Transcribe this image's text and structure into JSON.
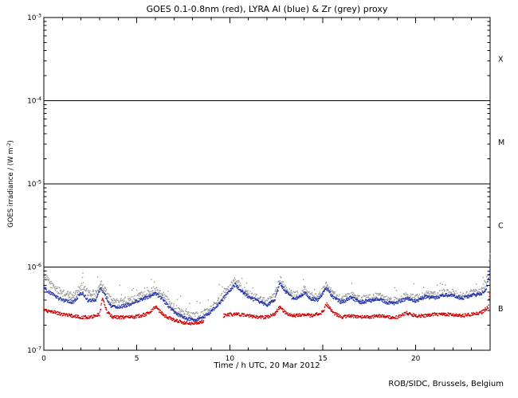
{
  "title": "GOES 0.1-0.8nm (red), LYRA Al (blue) & Zr (grey) proxy",
  "xlabel": "Time / h UTC, 20 Mar 2012",
  "ylabel": {
    "text": "GOES irradiance / (W m",
    "sup": "-2",
    "close": ")"
  },
  "credit": "ROB/SIDC, Brussels, Belgium",
  "chart_data": {
    "type": "scatter",
    "title": "GOES 0.1-0.8nm (red), LYRA Al (blue) & Zr (grey) proxy",
    "xlabel": "Time / h UTC, 20 Mar 2012",
    "ylabel": "GOES irradiance / (W m-2)",
    "x_unit": "hours UTC",
    "y_unit": "W m-2",
    "xlim": [
      0,
      24
    ],
    "ylim_exp": [
      -7,
      -3
    ],
    "x_major_ticks": [
      0,
      5,
      10,
      15,
      20
    ],
    "x_minor_step": 1,
    "y_decade_exps": [
      -3,
      -4,
      -5,
      -6,
      -7
    ],
    "hlines_exp": [
      -4,
      -5,
      -6
    ],
    "class_labels": [
      {
        "label": "X",
        "mid_exp": -3.5
      },
      {
        "label": "M",
        "mid_exp": -4.5
      },
      {
        "label": "C",
        "mid_exp": -5.5
      },
      {
        "label": "B",
        "mid_exp": -6.5
      }
    ],
    "value_scale": 1e-07,
    "series": [
      {
        "name": "LYRA Zr proxy",
        "color": "#9a9a9a",
        "jitter": 0.1,
        "outliers": true,
        "gaps": [],
        "points": [
          [
            0,
            8.0
          ],
          [
            0.4,
            6.2
          ],
          [
            0.8,
            5.2
          ],
          [
            1.2,
            4.7
          ],
          [
            1.6,
            4.5
          ],
          [
            1.9,
            5.5
          ],
          [
            2.1,
            6.1
          ],
          [
            2.4,
            4.7
          ],
          [
            2.8,
            4.9
          ],
          [
            3.05,
            6.4
          ],
          [
            3.3,
            5.3
          ],
          [
            3.6,
            3.9
          ],
          [
            4,
            3.8
          ],
          [
            4.5,
            4.0
          ],
          [
            5,
            4.4
          ],
          [
            5.5,
            4.8
          ],
          [
            6,
            5.4
          ],
          [
            6.3,
            4.9
          ],
          [
            6.7,
            3.9
          ],
          [
            7,
            3.3
          ],
          [
            7.5,
            2.8
          ],
          [
            8,
            2.6
          ],
          [
            8.5,
            2.7
          ],
          [
            9,
            3.2
          ],
          [
            9.5,
            4.2
          ],
          [
            10,
            5.7
          ],
          [
            10.3,
            7.0
          ],
          [
            10.7,
            5.5
          ],
          [
            11,
            4.8
          ],
          [
            11.5,
            4.2
          ],
          [
            12,
            3.8
          ],
          [
            12.4,
            4.4
          ],
          [
            12.7,
            7.2
          ],
          [
            13,
            5.6
          ],
          [
            13.4,
            4.6
          ],
          [
            13.8,
            4.8
          ],
          [
            14,
            5.5
          ],
          [
            14.3,
            4.6
          ],
          [
            14.7,
            4.3
          ],
          [
            15,
            5.2
          ],
          [
            15.2,
            6.1
          ],
          [
            15.6,
            4.7
          ],
          [
            16,
            4.1
          ],
          [
            16.5,
            4.6
          ],
          [
            17,
            4.1
          ],
          [
            17.5,
            4.2
          ],
          [
            18,
            4.5
          ],
          [
            18.5,
            4.0
          ],
          [
            19,
            4.0
          ],
          [
            19.5,
            4.5
          ],
          [
            20,
            4.2
          ],
          [
            20.5,
            4.7
          ],
          [
            21,
            4.6
          ],
          [
            21.5,
            4.9
          ],
          [
            22,
            4.9
          ],
          [
            22.5,
            4.5
          ],
          [
            23,
            4.9
          ],
          [
            23.5,
            5.0
          ],
          [
            23.8,
            6.6
          ],
          [
            24,
            14.0
          ]
        ]
      },
      {
        "name": "LYRA Al",
        "color": "#2233aa",
        "jitter": 0.05,
        "outliers": false,
        "gaps": [],
        "points": [
          [
            0,
            5.6
          ],
          [
            0.4,
            4.8
          ],
          [
            0.8,
            4.2
          ],
          [
            1.2,
            3.9
          ],
          [
            1.6,
            3.8
          ],
          [
            1.9,
            4.6
          ],
          [
            2.1,
            4.9
          ],
          [
            2.4,
            3.9
          ],
          [
            2.8,
            4.1
          ],
          [
            3.05,
            5.6
          ],
          [
            3.3,
            4.6
          ],
          [
            3.6,
            3.4
          ],
          [
            4,
            3.3
          ],
          [
            4.5,
            3.5
          ],
          [
            5,
            3.9
          ],
          [
            5.5,
            4.3
          ],
          [
            6,
            4.8
          ],
          [
            6.3,
            4.3
          ],
          [
            6.7,
            3.4
          ],
          [
            7,
            2.9
          ],
          [
            7.5,
            2.5
          ],
          [
            8,
            2.3
          ],
          [
            8.5,
            2.4
          ],
          [
            9,
            2.9
          ],
          [
            9.5,
            3.8
          ],
          [
            10,
            5.2
          ],
          [
            10.3,
            6.2
          ],
          [
            10.7,
            5.0
          ],
          [
            11,
            4.4
          ],
          [
            11.5,
            3.9
          ],
          [
            12,
            3.5
          ],
          [
            12.4,
            4.0
          ],
          [
            12.7,
            6.3
          ],
          [
            13,
            5.1
          ],
          [
            13.4,
            4.2
          ],
          [
            13.8,
            4.4
          ],
          [
            14,
            5.0
          ],
          [
            14.3,
            4.2
          ],
          [
            14.7,
            4.0
          ],
          [
            15,
            4.8
          ],
          [
            15.2,
            5.5
          ],
          [
            15.6,
            4.3
          ],
          [
            16,
            3.8
          ],
          [
            16.5,
            4.3
          ],
          [
            17,
            3.8
          ],
          [
            17.5,
            3.9
          ],
          [
            18,
            4.2
          ],
          [
            18.5,
            3.7
          ],
          [
            19,
            3.7
          ],
          [
            19.5,
            4.2
          ],
          [
            20,
            3.9
          ],
          [
            20.5,
            4.4
          ],
          [
            21,
            4.3
          ],
          [
            21.5,
            4.6
          ],
          [
            22,
            4.6
          ],
          [
            22.5,
            4.2
          ],
          [
            23,
            4.6
          ],
          [
            23.5,
            4.7
          ],
          [
            23.8,
            5.5
          ],
          [
            24,
            9.5
          ]
        ]
      },
      {
        "name": "GOES 0.1-0.8nm",
        "color": "#cc0000",
        "jitter": 0.045,
        "outliers": false,
        "gaps": [
          [
            8.6,
            9.65
          ]
        ],
        "points": [
          [
            0,
            3.0
          ],
          [
            0.5,
            2.9
          ],
          [
            1,
            2.7
          ],
          [
            1.5,
            2.6
          ],
          [
            2,
            2.5
          ],
          [
            2.5,
            2.5
          ],
          [
            3,
            2.7
          ],
          [
            3.15,
            4.3
          ],
          [
            3.4,
            2.9
          ],
          [
            3.7,
            2.5
          ],
          [
            4.2,
            2.5
          ],
          [
            4.7,
            2.5
          ],
          [
            5.2,
            2.6
          ],
          [
            5.7,
            2.8
          ],
          [
            6,
            3.4
          ],
          [
            6.2,
            3.0
          ],
          [
            6.5,
            2.6
          ],
          [
            7,
            2.3
          ],
          [
            7.5,
            2.15
          ],
          [
            8,
            2.1
          ],
          [
            8.6,
            2.2
          ],
          [
            9.65,
            2.6
          ],
          [
            10,
            2.7
          ],
          [
            10.5,
            2.7
          ],
          [
            11,
            2.6
          ],
          [
            11.5,
            2.5
          ],
          [
            12,
            2.5
          ],
          [
            12.4,
            2.7
          ],
          [
            12.7,
            3.3
          ],
          [
            13,
            2.8
          ],
          [
            13.5,
            2.6
          ],
          [
            14,
            2.7
          ],
          [
            14.5,
            2.6
          ],
          [
            15,
            2.9
          ],
          [
            15.2,
            3.6
          ],
          [
            15.6,
            2.8
          ],
          [
            16,
            2.5
          ],
          [
            16.5,
            2.6
          ],
          [
            17,
            2.5
          ],
          [
            17.5,
            2.5
          ],
          [
            18,
            2.6
          ],
          [
            18.5,
            2.5
          ],
          [
            19,
            2.5
          ],
          [
            19.5,
            2.8
          ],
          [
            20,
            2.6
          ],
          [
            20.5,
            2.6
          ],
          [
            21,
            2.7
          ],
          [
            21.5,
            2.7
          ],
          [
            22,
            2.7
          ],
          [
            22.5,
            2.6
          ],
          [
            23,
            2.7
          ],
          [
            23.5,
            2.8
          ],
          [
            23.9,
            3.3
          ],
          [
            24,
            5.5
          ]
        ]
      }
    ]
  }
}
